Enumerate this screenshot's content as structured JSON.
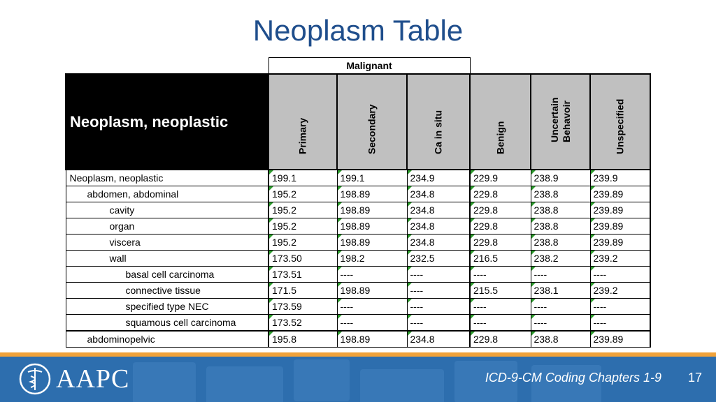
{
  "slide": {
    "title": "Neoplasm Table",
    "page_number": "17",
    "footer_text": "ICD-9-CM Coding Chapters 1-9",
    "logo_text": "AAPC"
  },
  "table": {
    "group_header": "Malignant",
    "row_header": "Neoplasm, neoplastic",
    "columns": [
      "Primary",
      "Secondary",
      "Ca in situ",
      "Benign",
      "Uncertain Behavoir",
      "Unspecified"
    ],
    "rows": [
      {
        "name": "Neoplasm, neoplastic",
        "values": [
          "199.1",
          "199.1",
          "234.9",
          "229.9",
          "238.9",
          "239.9"
        ]
      },
      {
        "name": "abdomen, abdominal",
        "values": [
          "195.2",
          "198.89",
          "234.8",
          "229.8",
          "238.8",
          "239.89"
        ]
      },
      {
        "name": "cavity",
        "values": [
          "195.2",
          "198.89",
          "234.8",
          "229.8",
          "238.8",
          "239.89"
        ]
      },
      {
        "name": "organ",
        "values": [
          "195.2",
          "198.89",
          "234.8",
          "229.8",
          "238.8",
          "239.89"
        ]
      },
      {
        "name": "viscera",
        "values": [
          "195.2",
          "198.89",
          "234.8",
          "229.8",
          "238.8",
          "239.89"
        ]
      },
      {
        "name": "wall",
        "values": [
          "173.50",
          "198.2",
          "232.5",
          "216.5",
          "238.2",
          "239.2"
        ]
      },
      {
        "name": "basal cell carcinoma",
        "values": [
          "173.51",
          "----",
          "----",
          "----",
          "----",
          "----"
        ]
      },
      {
        "name": "connective tissue",
        "values": [
          "171.5",
          "198.89",
          "----",
          "215.5",
          "238.1",
          "239.2"
        ]
      },
      {
        "name": "specified type NEC",
        "values": [
          "173.59",
          "----",
          "----",
          "----",
          "----",
          "----"
        ]
      },
      {
        "name": "squamous cell carcinoma",
        "values": [
          "173.52",
          "----",
          "----",
          "----",
          "----",
          "----"
        ]
      },
      {
        "name": "abdominopelvic",
        "values": [
          "195.8",
          "198.89",
          "234.8",
          "229.8",
          "238.8",
          "239.89"
        ]
      }
    ]
  },
  "colors": {
    "title": "#1f4e8c",
    "footer_bg": "#2d6eae",
    "footer_stripe": "#f0a23a",
    "header_gray": "#c0c0c0",
    "corner_marker": "#2e9e2e"
  }
}
